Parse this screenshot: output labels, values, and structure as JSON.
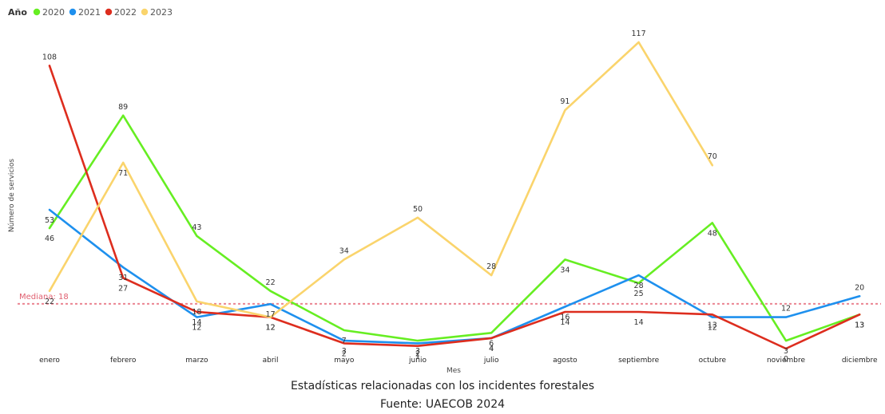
{
  "caption": {
    "line1": "Estadísticas relacionadas con los incidentes forestales",
    "line2": "Fuente: UAECOB 2024"
  },
  "chart_data": {
    "type": "line",
    "legend": {
      "title": "Año",
      "position": "top-left"
    },
    "xlabel": "Mes",
    "ylabel": "Número de servicios",
    "categories": [
      "enero",
      "febrero",
      "marzo",
      "abril",
      "mayo",
      "junio",
      "julio",
      "agosto",
      "septiembre",
      "octubre",
      "noviembre",
      "diciembre"
    ],
    "ylim": [
      0,
      120
    ],
    "grid": false,
    "series": [
      {
        "name": "2020",
        "color": "#66ee22",
        "values": [
          46,
          89,
          43,
          22,
          7,
          3,
          6,
          34,
          25,
          48,
          3,
          13
        ]
      },
      {
        "name": "2021",
        "color": "#1e90ee",
        "values": [
          53,
          31,
          12,
          17,
          3,
          2,
          4,
          16,
          28,
          12,
          12,
          20
        ]
      },
      {
        "name": "2022",
        "color": "#dd2d1e",
        "values": [
          108,
          27,
          14,
          12,
          2,
          1,
          4,
          14,
          14,
          13,
          0,
          13
        ]
      },
      {
        "name": "2023",
        "color": "#fad46c",
        "values": [
          22,
          71,
          18,
          12,
          34,
          50,
          28,
          91,
          117,
          70,
          null,
          null
        ]
      }
    ],
    "reference_line": {
      "label": "Mediana: 18",
      "value": 18,
      "color": "#e8707f"
    }
  }
}
